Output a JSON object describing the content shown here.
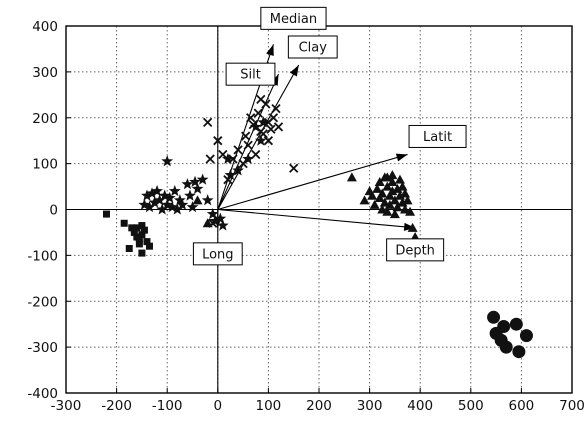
{
  "chart_data": {
    "type": "scatter",
    "title": "",
    "xlabel": "",
    "ylabel": "",
    "xlim": [
      -300,
      700
    ],
    "ylim": [
      -400,
      400
    ],
    "xticks": [
      -300,
      -200,
      -100,
      0,
      100,
      200,
      300,
      400,
      500,
      600,
      700
    ],
    "yticks": [
      -400,
      -300,
      -200,
      -100,
      0,
      100,
      200,
      300,
      400
    ],
    "xtick_labels": [
      "-300",
      "-200",
      "-100",
      "0",
      "100",
      "200",
      "300",
      "400",
      "500",
      "600",
      "700"
    ],
    "ytick_labels": [
      "-400",
      "-300",
      "-200",
      "-100",
      "0",
      "100",
      "200",
      "300",
      "400"
    ],
    "grid": true,
    "grid_style": "dotted",
    "series": [
      {
        "marker": "square",
        "points": [
          [
            -220,
            -10
          ],
          [
            -185,
            -30
          ],
          [
            -175,
            -85
          ],
          [
            -165,
            -50
          ],
          [
            -160,
            -60
          ],
          [
            -155,
            -75
          ],
          [
            -150,
            -95
          ],
          [
            -150,
            -55
          ],
          [
            -145,
            -45
          ],
          [
            -140,
            -70
          ],
          [
            -135,
            -80
          ],
          [
            -170,
            -40
          ],
          [
            -160,
            -40
          ],
          [
            -150,
            -35
          ],
          [
            -155,
            -65
          ]
        ]
      },
      {
        "marker": "star",
        "points": [
          [
            -145,
            10
          ],
          [
            -140,
            30
          ],
          [
            -135,
            5
          ],
          [
            -130,
            35
          ],
          [
            -125,
            15
          ],
          [
            -120,
            40
          ],
          [
            -115,
            20
          ],
          [
            -110,
            0
          ],
          [
            -105,
            30
          ],
          [
            -100,
            105
          ],
          [
            -100,
            10
          ],
          [
            -95,
            25
          ],
          [
            -90,
            5
          ],
          [
            -85,
            40
          ],
          [
            -80,
            0
          ],
          [
            -75,
            20
          ],
          [
            -70,
            10
          ],
          [
            -60,
            55
          ],
          [
            -55,
            30
          ],
          [
            -50,
            5
          ],
          [
            -45,
            60
          ],
          [
            -40,
            45
          ],
          [
            -30,
            65
          ],
          [
            -20,
            20
          ],
          [
            -10,
            -10
          ],
          [
            -5,
            -25
          ],
          [
            5,
            -20
          ],
          [
            10,
            -35
          ],
          [
            20,
            110
          ],
          [
            25,
            75
          ],
          [
            40,
            85
          ],
          [
            60,
            110
          ],
          [
            75,
            180
          ],
          [
            85,
            150
          ],
          [
            90,
            190
          ]
        ]
      },
      {
        "marker": "x",
        "points": [
          [
            -20,
            190
          ],
          [
            -15,
            110
          ],
          [
            -10,
            -30
          ],
          [
            0,
            150
          ],
          [
            10,
            120
          ],
          [
            20,
            65
          ],
          [
            30,
            110
          ],
          [
            40,
            130
          ],
          [
            50,
            100
          ],
          [
            55,
            160
          ],
          [
            60,
            140
          ],
          [
            65,
            200
          ],
          [
            70,
            185
          ],
          [
            75,
            120
          ],
          [
            80,
            210
          ],
          [
            85,
            170
          ],
          [
            85,
            240
          ],
          [
            90,
            165
          ],
          [
            95,
            230
          ],
          [
            100,
            190
          ],
          [
            100,
            150
          ],
          [
            105,
            175
          ],
          [
            110,
            200
          ],
          [
            115,
            220
          ],
          [
            120,
            180
          ],
          [
            150,
            90
          ]
        ]
      },
      {
        "marker": "triangle",
        "points": [
          [
            -40,
            20
          ],
          [
            -20,
            -30
          ],
          [
            265,
            70
          ],
          [
            290,
            20
          ],
          [
            300,
            40
          ],
          [
            305,
            30
          ],
          [
            310,
            10
          ],
          [
            315,
            45
          ],
          [
            320,
            25
          ],
          [
            320,
            60
          ],
          [
            325,
            0
          ],
          [
            325,
            35
          ],
          [
            330,
            70
          ],
          [
            330,
            15
          ],
          [
            335,
            50
          ],
          [
            335,
            -5
          ],
          [
            340,
            30
          ],
          [
            340,
            10
          ],
          [
            345,
            60
          ],
          [
            345,
            40
          ],
          [
            350,
            20
          ],
          [
            350,
            -10
          ],
          [
            355,
            45
          ],
          [
            355,
            5
          ],
          [
            360,
            30
          ],
          [
            360,
            65
          ],
          [
            365,
            15
          ],
          [
            365,
            50
          ],
          [
            370,
            0
          ],
          [
            370,
            35
          ],
          [
            375,
            20
          ],
          [
            380,
            -5
          ],
          [
            385,
            -40
          ],
          [
            390,
            -60
          ],
          [
            335,
            70
          ],
          [
            345,
            75
          ]
        ]
      },
      {
        "marker": "circle",
        "points": [
          [
            545,
            -235
          ],
          [
            565,
            -255
          ],
          [
            590,
            -250
          ],
          [
            550,
            -270
          ],
          [
            610,
            -275
          ],
          [
            570,
            -300
          ],
          [
            595,
            -310
          ],
          [
            560,
            -285
          ]
        ]
      }
    ],
    "vectors": [
      {
        "label": "Median",
        "x": 110,
        "y": 360
      },
      {
        "label": "Clay",
        "x": 160,
        "y": 315
      },
      {
        "label": "Silt",
        "x": 120,
        "y": 295
      },
      {
        "label": "Latit",
        "x": 375,
        "y": 120
      },
      {
        "label": "Depth",
        "x": 390,
        "y": -40
      },
      {
        "label": "Long",
        "x": 0,
        "y": -40
      }
    ],
    "colors": {
      "axis": "#000000",
      "grid": "#666666",
      "marker": "#111111"
    }
  }
}
